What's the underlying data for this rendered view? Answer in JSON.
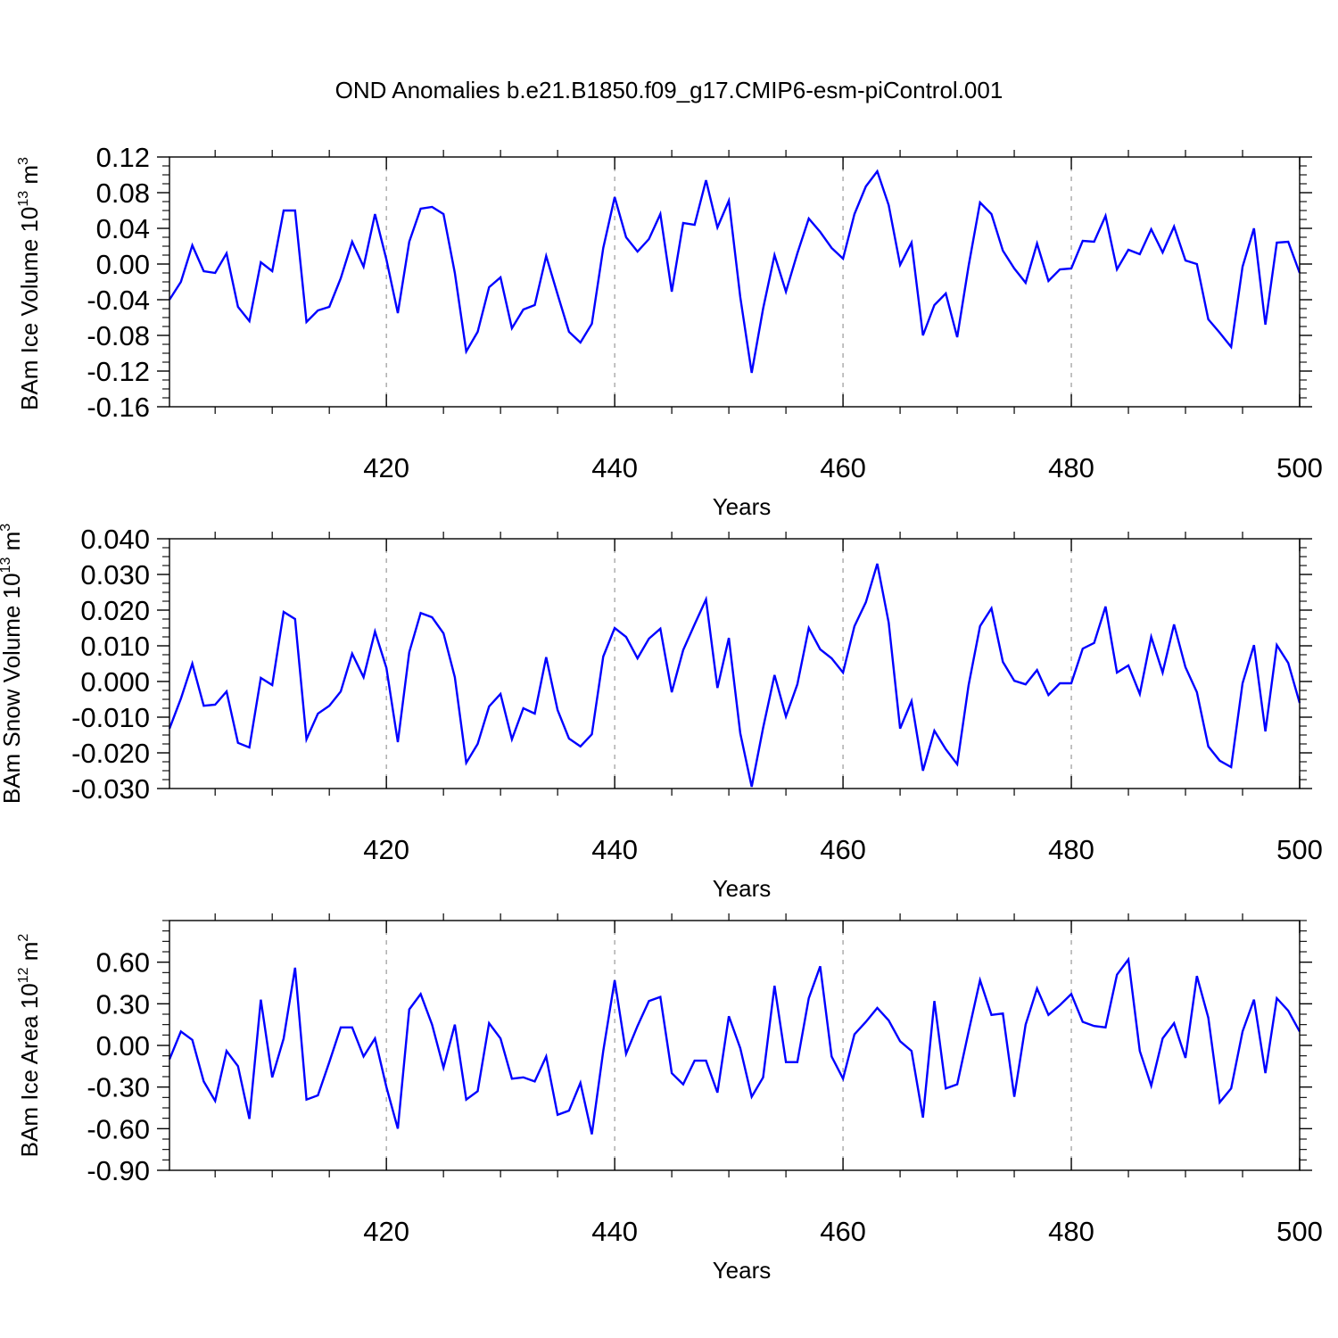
{
  "title": "OND Anomalies b.e21.B1850.f09_g17.CMIP6-esm-piControl.001",
  "colors": {
    "line": "#0000ff",
    "axis": "#000000",
    "grid": "#9a9a9a"
  },
  "chart_data": [
    {
      "type": "line",
      "xlabel": "Years",
      "ylabel": "BAm Ice Volume 10",
      "ylabel_exp": "13",
      "ylabel_unit": " m",
      "ylabel_unit_exp": "3",
      "xlim": [
        401,
        500
      ],
      "ylim": [
        -0.16,
        0.12
      ],
      "xticks": [
        420,
        440,
        460,
        480,
        500
      ],
      "xtick_labels": [
        "420",
        "440",
        "460",
        "480",
        "500"
      ],
      "yticks": [
        0.12,
        0.08,
        0.04,
        0.0,
        -0.04,
        -0.08,
        -0.12,
        -0.16
      ],
      "ytick_labels": [
        "0.12",
        "0.08",
        "0.04",
        "0.00",
        "-0.04",
        "-0.08",
        "-0.12",
        "-0.16"
      ],
      "grid": "vertical dashed at major x ticks",
      "series": [
        {
          "x_start": 401,
          "x_step": 1,
          "values": [
            -0.04,
            -0.02,
            0.021,
            -0.008,
            -0.01,
            0.012,
            -0.048,
            -0.064,
            0.002,
            -0.008,
            0.06,
            0.06,
            -0.065,
            -0.052,
            -0.048,
            -0.016,
            0.025,
            -0.003,
            0.056,
            0.005,
            -0.055,
            0.025,
            0.062,
            0.064,
            0.056,
            -0.01,
            -0.098,
            -0.076,
            -0.026,
            -0.015,
            -0.072,
            -0.051,
            -0.046,
            0.009,
            -0.034,
            -0.076,
            -0.088,
            -0.067,
            0.018,
            0.075,
            0.03,
            0.014,
            0.028,
            0.056,
            -0.031,
            0.046,
            0.044,
            0.094,
            0.041,
            0.071,
            -0.037,
            -0.122,
            -0.05,
            0.01,
            -0.031,
            0.012,
            0.051,
            0.036,
            0.018,
            0.006,
            0.056,
            0.087,
            0.104,
            0.066,
            -0.001,
            0.024,
            -0.08,
            -0.046,
            -0.033,
            -0.082,
            -0.002,
            0.069,
            0.056,
            0.015,
            -0.005,
            -0.021,
            0.023,
            -0.019,
            -0.006,
            -0.005,
            0.026,
            0.025,
            0.054,
            -0.006,
            0.016,
            0.011,
            0.039,
            0.013,
            0.042,
            0.004,
            0.0,
            -0.062,
            -0.077,
            -0.093,
            -0.003,
            0.04,
            -0.068,
            0.024,
            0.025,
            -0.01
          ]
        }
      ]
    },
    {
      "type": "line",
      "xlabel": "Years",
      "ylabel": "BAm Snow Volume 10",
      "ylabel_exp": "13",
      "ylabel_unit": " m",
      "ylabel_unit_exp": "3",
      "xlim": [
        401,
        500
      ],
      "ylim": [
        -0.03,
        0.04
      ],
      "xticks": [
        420,
        440,
        460,
        480,
        500
      ],
      "xtick_labels": [
        "420",
        "440",
        "460",
        "480",
        "500"
      ],
      "yticks": [
        0.04,
        0.03,
        0.02,
        0.01,
        0.0,
        -0.01,
        -0.02,
        -0.03
      ],
      "ytick_labels": [
        "0.040",
        "0.030",
        "0.020",
        "0.010",
        "0.000",
        "-0.010",
        "-0.020",
        "-0.030"
      ],
      "grid": "vertical dashed at major x ticks",
      "series": [
        {
          "x_start": 401,
          "x_step": 1,
          "values": [
            -0.0132,
            -0.0048,
            0.005,
            -0.0068,
            -0.0065,
            -0.0028,
            -0.0172,
            -0.0185,
            0.001,
            -0.001,
            0.0195,
            0.0175,
            -0.0162,
            -0.009,
            -0.0068,
            -0.0028,
            0.0078,
            0.0012,
            0.014,
            0.0038,
            -0.017,
            0.0082,
            0.0192,
            0.018,
            0.0135,
            0.0012,
            -0.0228,
            -0.0175,
            -0.007,
            -0.0035,
            -0.0162,
            -0.0075,
            -0.009,
            0.0068,
            -0.008,
            -0.016,
            -0.0182,
            -0.0148,
            0.007,
            0.015,
            0.0125,
            0.0065,
            0.012,
            0.0148,
            -0.003,
            0.0088,
            0.016,
            0.023,
            -0.0018,
            0.0122,
            -0.0145,
            -0.0295,
            -0.013,
            0.0018,
            -0.0098,
            -0.0008,
            0.015,
            0.009,
            0.0065,
            0.0025,
            0.0155,
            0.0222,
            0.033,
            0.0165,
            -0.0132,
            -0.0055,
            -0.025,
            -0.0138,
            -0.019,
            -0.0232,
            -0.001,
            0.0155,
            0.0205,
            0.0055,
            0.0002,
            -0.0008,
            0.0032,
            -0.0038,
            -0.0005,
            -0.0005,
            0.0092,
            0.0108,
            0.021,
            0.0025,
            0.0045,
            -0.0035,
            0.0125,
            0.0025,
            0.016,
            0.004,
            -0.003,
            -0.0182,
            -0.0222,
            -0.024,
            -0.0005,
            0.0102,
            -0.014,
            0.0102,
            0.0052,
            -0.006
          ]
        }
      ]
    },
    {
      "type": "line",
      "xlabel": "Years",
      "ylabel": "BAm Ice Area 10",
      "ylabel_exp": "12",
      "ylabel_unit": " m",
      "ylabel_unit_exp": "2",
      "xlim": [
        401,
        500
      ],
      "ylim": [
        -0.9,
        0.9
      ],
      "xticks": [
        420,
        440,
        460,
        480,
        500
      ],
      "xtick_labels": [
        "420",
        "440",
        "460",
        "480",
        "500"
      ],
      "yticks": [
        0.6,
        0.3,
        0.0,
        -0.3,
        -0.6,
        -0.9
      ],
      "ytick_labels": [
        "0.60",
        "0.30",
        "0.00",
        "-0.30",
        "-0.60",
        "-0.90"
      ],
      "grid": "vertical dashed at major x ticks",
      "series": [
        {
          "x_start": 401,
          "x_step": 1,
          "values": [
            -0.1,
            0.1,
            0.04,
            -0.26,
            -0.4,
            -0.04,
            -0.15,
            -0.53,
            0.33,
            -0.23,
            0.05,
            0.56,
            -0.39,
            -0.36,
            -0.12,
            0.13,
            0.13,
            -0.08,
            0.05,
            -0.3,
            -0.6,
            0.26,
            0.37,
            0.15,
            -0.16,
            0.15,
            -0.39,
            -0.33,
            0.16,
            0.05,
            -0.24,
            -0.23,
            -0.26,
            -0.08,
            -0.5,
            -0.47,
            -0.27,
            -0.64,
            -0.04,
            0.47,
            -0.06,
            0.14,
            0.32,
            0.35,
            -0.2,
            -0.28,
            -0.11,
            -0.11,
            -0.34,
            0.21,
            -0.02,
            -0.37,
            -0.23,
            0.43,
            -0.12,
            -0.12,
            0.34,
            0.57,
            -0.08,
            -0.24,
            0.08,
            0.17,
            0.27,
            0.18,
            0.03,
            -0.04,
            -0.52,
            0.32,
            -0.31,
            -0.28,
            0.1,
            0.47,
            0.22,
            0.23,
            -0.37,
            0.15,
            0.41,
            0.22,
            0.29,
            0.37,
            0.17,
            0.14,
            0.13,
            0.51,
            0.62,
            -0.04,
            -0.29,
            0.05,
            0.16,
            -0.09,
            0.5,
            0.2,
            -0.41,
            -0.31,
            0.1,
            0.33,
            -0.2,
            0.34,
            0.25,
            0.1
          ]
        }
      ]
    }
  ]
}
